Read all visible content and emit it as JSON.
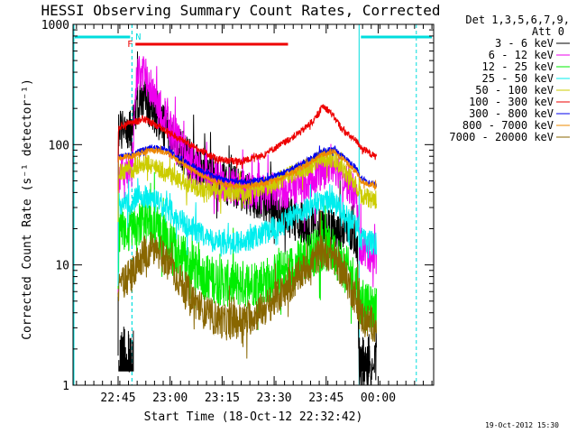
{
  "chart_data": {
    "type": "line",
    "title": "HESSI Observing Summary Count Rates, Corrected",
    "xlabel": "Start Time (18-Oct-12 22:32:42)",
    "ylabel": "Corrected Count Rate (s⁻¹ detector⁻¹)",
    "x_tick_labels": [
      "22:45",
      "23:00",
      "23:15",
      "23:30",
      "23:45",
      "00:00"
    ],
    "x_ticks_min": [
      13,
      28,
      43,
      58,
      73,
      88
    ],
    "xlim_min": [
      0,
      104
    ],
    "y_scale": "log",
    "ylim": [
      1,
      1000
    ],
    "y_tick_labels": [
      "1",
      "10",
      "100",
      "1000"
    ],
    "y_ticks": [
      1,
      10,
      100,
      1000
    ],
    "legend_header": [
      "Det 1,3,5,6,7,9,",
      "Att 0"
    ],
    "legend_placement": "right-outside",
    "night_intervals_min": [
      [
        0,
        17
      ],
      [
        82.5,
        104
      ]
    ],
    "saa_markers_min": [
      17,
      99
    ],
    "flare_flag": {
      "label": "F",
      "start": 18,
      "end": 62,
      "color": "#ee0000"
    },
    "night_flag": {
      "label": "N",
      "color": "#00dddd"
    },
    "series": [
      {
        "name": "3 - 6 keV",
        "color": "#000000",
        "noise": 0.18,
        "points": [
          [
            13,
            1.3
          ],
          [
            13.1,
            140
          ],
          [
            16,
            130
          ],
          [
            17,
            125
          ],
          [
            18,
            200
          ],
          [
            20,
            250
          ],
          [
            22,
            210
          ],
          [
            25,
            160
          ],
          [
            28,
            120
          ],
          [
            32,
            85
          ],
          [
            38,
            60
          ],
          [
            44,
            48
          ],
          [
            50,
            40
          ],
          [
            56,
            32
          ],
          [
            62,
            25
          ],
          [
            70,
            20
          ],
          [
            80,
            18
          ],
          [
            82,
            16
          ],
          [
            82.5,
            1.5
          ],
          [
            84,
            1.5
          ],
          [
            85,
            1.5
          ]
        ]
      },
      {
        "name": "6 - 12 keV",
        "color": "#ee00ee",
        "noise": 0.16,
        "points": [
          [
            13,
            5
          ],
          [
            13.1,
            55
          ],
          [
            16,
            60
          ],
          [
            17,
            60
          ],
          [
            18,
            300
          ],
          [
            19,
            420
          ],
          [
            21,
            360
          ],
          [
            24,
            240
          ],
          [
            28,
            140
          ],
          [
            32,
            90
          ],
          [
            38,
            60
          ],
          [
            44,
            46
          ],
          [
            50,
            42
          ],
          [
            56,
            40
          ],
          [
            62,
            42
          ],
          [
            68,
            50
          ],
          [
            72,
            60
          ],
          [
            75,
            70
          ],
          [
            78,
            55
          ],
          [
            82,
            35
          ],
          [
            82.5,
            15
          ],
          [
            84,
            13
          ],
          [
            87,
            12
          ]
        ]
      },
      {
        "name": "12 - 25 keV",
        "color": "#00ee00",
        "noise": 0.2,
        "points": [
          [
            13,
            6
          ],
          [
            13.1,
            20
          ],
          [
            16,
            20
          ],
          [
            17,
            20
          ],
          [
            18,
            22
          ],
          [
            20,
            24
          ],
          [
            24,
            20
          ],
          [
            28,
            15
          ],
          [
            32,
            11
          ],
          [
            38,
            8
          ],
          [
            44,
            7
          ],
          [
            50,
            7
          ],
          [
            56,
            7.5
          ],
          [
            62,
            9
          ],
          [
            68,
            12
          ],
          [
            72,
            14
          ],
          [
            75,
            13
          ],
          [
            78,
            10
          ],
          [
            82,
            7
          ],
          [
            82.5,
            5
          ],
          [
            84,
            4.5
          ],
          [
            87,
            4.2
          ]
        ]
      },
      {
        "name": "25 - 50 keV",
        "color": "#00eeee",
        "noise": 0.1,
        "points": [
          [
            13,
            7
          ],
          [
            13.1,
            33
          ],
          [
            16,
            33
          ],
          [
            17,
            32
          ],
          [
            18,
            35
          ],
          [
            20,
            38
          ],
          [
            24,
            34
          ],
          [
            28,
            28
          ],
          [
            32,
            22
          ],
          [
            38,
            17
          ],
          [
            44,
            15
          ],
          [
            50,
            16
          ],
          [
            56,
            19
          ],
          [
            62,
            24
          ],
          [
            68,
            30
          ],
          [
            72,
            34
          ],
          [
            75,
            33
          ],
          [
            78,
            28
          ],
          [
            82,
            20
          ],
          [
            82.5,
            17
          ],
          [
            84,
            16
          ],
          [
            87,
            15
          ]
        ]
      },
      {
        "name": "50 - 100 keV",
        "color": "#cccc00",
        "noise": 0.08,
        "points": [
          [
            13,
            25
          ],
          [
            13.1,
            60
          ],
          [
            16,
            62
          ],
          [
            17,
            62
          ],
          [
            18,
            66
          ],
          [
            21,
            70
          ],
          [
            25,
            62
          ],
          [
            30,
            52
          ],
          [
            36,
            44
          ],
          [
            44,
            40
          ],
          [
            50,
            40
          ],
          [
            56,
            45
          ],
          [
            62,
            55
          ],
          [
            68,
            66
          ],
          [
            72,
            78
          ],
          [
            75,
            76
          ],
          [
            78,
            62
          ],
          [
            82,
            45
          ],
          [
            82.5,
            40
          ],
          [
            84,
            37
          ],
          [
            87,
            35
          ]
        ]
      },
      {
        "name": "100 - 300 keV",
        "color": "#ee0000",
        "noise": 0.03,
        "points": [
          [
            13,
            75
          ],
          [
            13.1,
            140
          ],
          [
            16,
            150
          ],
          [
            17,
            150
          ],
          [
            18,
            155
          ],
          [
            21,
            162
          ],
          [
            25,
            140
          ],
          [
            30,
            115
          ],
          [
            36,
            92
          ],
          [
            42,
            75
          ],
          [
            48,
            72
          ],
          [
            54,
            80
          ],
          [
            60,
            100
          ],
          [
            66,
            130
          ],
          [
            70,
            165
          ],
          [
            72,
            210
          ],
          [
            74,
            190
          ],
          [
            78,
            130
          ],
          [
            82,
            105
          ],
          [
            82.5,
            100
          ],
          [
            84,
            90
          ],
          [
            87,
            80
          ]
        ]
      },
      {
        "name": "300 - 800 keV",
        "color": "#0000ee",
        "noise": 0.025,
        "points": [
          [
            13,
            40
          ],
          [
            13.1,
            80
          ],
          [
            16,
            82
          ],
          [
            17,
            82
          ],
          [
            18,
            85
          ],
          [
            21,
            92
          ],
          [
            24,
            95
          ],
          [
            28,
            88
          ],
          [
            32,
            72
          ],
          [
            38,
            58
          ],
          [
            44,
            50
          ],
          [
            50,
            49
          ],
          [
            56,
            52
          ],
          [
            62,
            60
          ],
          [
            68,
            75
          ],
          [
            72,
            88
          ],
          [
            75,
            92
          ],
          [
            78,
            80
          ],
          [
            82,
            62
          ],
          [
            82.5,
            55
          ],
          [
            84,
            50
          ],
          [
            87,
            47
          ]
        ]
      },
      {
        "name": "800 - 7000 keV",
        "color": "#ee8800",
        "noise": 0.025,
        "points": [
          [
            13,
            40
          ],
          [
            13.1,
            78
          ],
          [
            16,
            80
          ],
          [
            17,
            80
          ],
          [
            18,
            82
          ],
          [
            21,
            88
          ],
          [
            24,
            90
          ],
          [
            28,
            84
          ],
          [
            32,
            68
          ],
          [
            38,
            54
          ],
          [
            44,
            46
          ],
          [
            50,
            45
          ],
          [
            56,
            48
          ],
          [
            62,
            56
          ],
          [
            68,
            70
          ],
          [
            72,
            84
          ],
          [
            75,
            88
          ],
          [
            78,
            76
          ],
          [
            82,
            58
          ],
          [
            82.5,
            52
          ],
          [
            84,
            48
          ],
          [
            87,
            45
          ]
        ]
      },
      {
        "name": "7000 - 20000 keV",
        "color": "#886600",
        "noise": 0.15,
        "points": [
          [
            13,
            5
          ],
          [
            13.1,
            7
          ],
          [
            16,
            8
          ],
          [
            17,
            8
          ],
          [
            18,
            10
          ],
          [
            21,
            13
          ],
          [
            24,
            14
          ],
          [
            28,
            10
          ],
          [
            32,
            6.5
          ],
          [
            38,
            4
          ],
          [
            44,
            3.3
          ],
          [
            50,
            3.5
          ],
          [
            56,
            4.5
          ],
          [
            62,
            6.5
          ],
          [
            68,
            10
          ],
          [
            72,
            13
          ],
          [
            75,
            12
          ],
          [
            78,
            8.5
          ],
          [
            82,
            5
          ],
          [
            82.5,
            4
          ],
          [
            84,
            3.5
          ],
          [
            87,
            3.2
          ]
        ]
      }
    ]
  },
  "footer": {
    "timestamp": "19-Oct-2012 15:30"
  }
}
